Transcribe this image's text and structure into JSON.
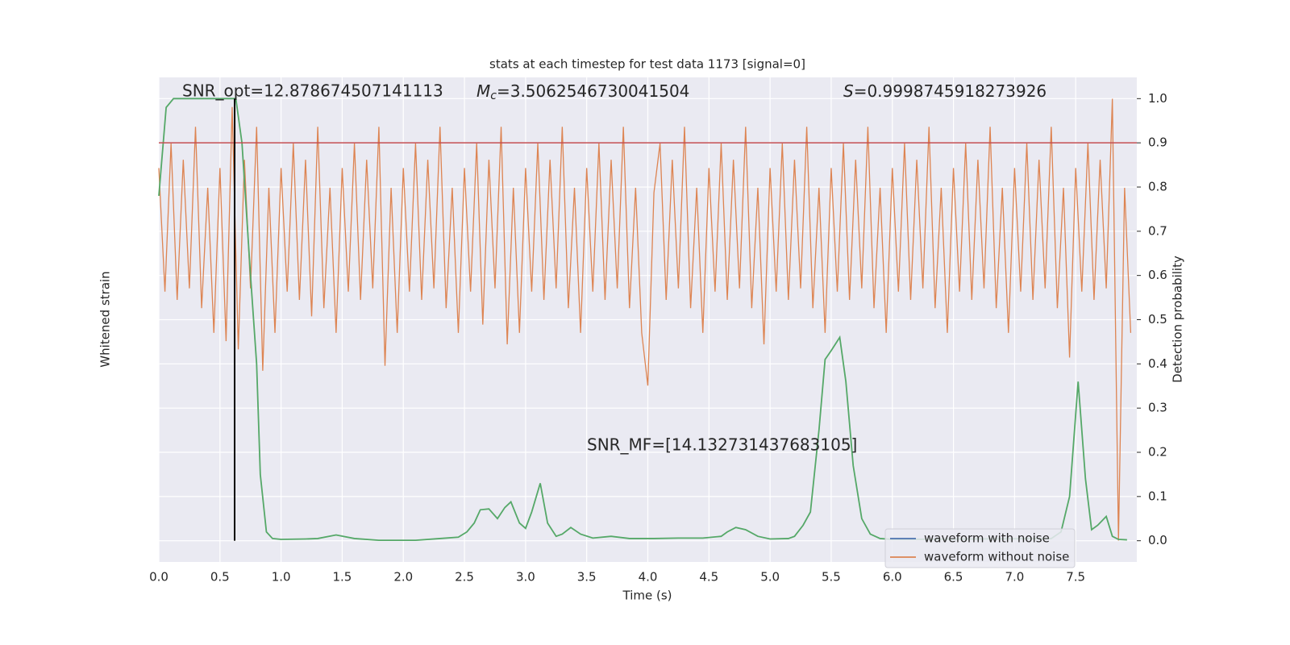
{
  "chart_data": {
    "type": "line",
    "title": "stats at each timestep for test data 1173 [signal=0]",
    "xlabel": "Time (s)",
    "ylabel": "Whitened strain",
    "y2label": "Detection probability",
    "xlim": [
      0,
      8
    ],
    "xticks": [
      {
        "value": 0,
        "label": "0.0"
      },
      0.5,
      {
        "value": 1,
        "label": "1.0"
      },
      1.5,
      {
        "value": 2,
        "label": "2.0"
      },
      2.5,
      {
        "value": 3,
        "label": "3.0"
      },
      3.5,
      {
        "value": 4,
        "label": "4.0"
      },
      4.5,
      {
        "value": 5,
        "label": "5.0"
      },
      5.5,
      {
        "value": 6,
        "label": "6.0"
      },
      6.5,
      {
        "value": 7,
        "label": "7.0"
      },
      7.5
    ],
    "ylim": [
      -1.94,
      1
    ],
    "y2lim": [
      -0.048,
      1.048
    ],
    "y2ticks": [
      {
        "value": 0,
        "label": "0.0"
      },
      0.1,
      0.2,
      0.3,
      0.4,
      0.5,
      0.6,
      0.7,
      0.8,
      0.9,
      {
        "value": 1,
        "label": "1.0"
      }
    ],
    "grid": true,
    "legend": "lower right",
    "legend_entries": [
      {
        "name": "waveform with noise",
        "color": "#4c72b0"
      },
      {
        "name": "waveform without noise",
        "color": "#dd8452"
      }
    ],
    "annotations": {
      "snr_opt": "SNR_opt=12.878674507141113",
      "chirp_mass": {
        "symbol": "M",
        "subscript": "c",
        "text": "=3.5062546730041504"
      },
      "score": {
        "symbol": "S",
        "text": "=0.9998745918273926"
      },
      "snr_mf": "SNR_MF=[14.132731437683105]"
    },
    "threshold": {
      "y": 0.9,
      "color": "#c44e52",
      "axis": "y2"
    },
    "marker_line": {
      "x": 0.62,
      "ymin": 0,
      "ymax": 1,
      "color": "#000000",
      "axis": "y2"
    },
    "series": [
      {
        "name": "waveform without noise",
        "color": "#dd8452",
        "axis": "y",
        "x": [
          0,
          0.05,
          0.1,
          0.15,
          0.2,
          0.25,
          0.3,
          0.35,
          0.4,
          0.45,
          0.5,
          0.55,
          0.6,
          0.65,
          0.7,
          0.75,
          0.8,
          0.85,
          0.9,
          0.95,
          1,
          1.05,
          1.1,
          1.15,
          1.2,
          1.25,
          1.3,
          1.35,
          1.4,
          1.45,
          1.5,
          1.55,
          1.6,
          1.65,
          1.7,
          1.75,
          1.8,
          1.85,
          1.9,
          1.95,
          2,
          2.05,
          2.1,
          2.15,
          2.2,
          2.25,
          2.3,
          2.35,
          2.4,
          2.45,
          2.5,
          2.55,
          2.6,
          2.65,
          2.7,
          2.75,
          2.8,
          2.85,
          2.9,
          2.95,
          3,
          3.05,
          3.1,
          3.15,
          3.2,
          3.25,
          3.3,
          3.35,
          3.4,
          3.45,
          3.5,
          3.55,
          3.6,
          3.65,
          3.7,
          3.75,
          3.8,
          3.85,
          3.9,
          3.95,
          4,
          4.05,
          4.1,
          4.15,
          4.2,
          4.25,
          4.3,
          4.35,
          4.4,
          4.45,
          4.5,
          4.55,
          4.6,
          4.65,
          4.7,
          4.75,
          4.8,
          4.85,
          4.9,
          4.95,
          5,
          5.05,
          5.1,
          5.15,
          5.2,
          5.25,
          5.3,
          5.35,
          5.4,
          5.45,
          5.5,
          5.55,
          5.6,
          5.65,
          5.7,
          5.75,
          5.8,
          5.85,
          5.9,
          5.95,
          6,
          6.05,
          6.1,
          6.15,
          6.2,
          6.25,
          6.3,
          6.35,
          6.4,
          6.45,
          6.5,
          6.55,
          6.6,
          6.65,
          6.7,
          6.75,
          6.8,
          6.85,
          6.9,
          6.95,
          7,
          7.05,
          7.1,
          7.15,
          7.2,
          7.25,
          7.3,
          7.35,
          7.4,
          7.45,
          7.5,
          7.55,
          7.6,
          7.65,
          7.7,
          7.75,
          7.8,
          7.85,
          7.9,
          7.95
        ],
        "values": [
          0.45,
          -0.3,
          0.6,
          -0.35,
          0.5,
          -0.28,
          0.7,
          -0.4,
          0.33,
          -0.55,
          0.45,
          -0.6,
          0.82,
          -0.65,
          0.5,
          -0.28,
          0.7,
          -0.78,
          0.33,
          -0.55,
          0.45,
          -0.3,
          0.6,
          -0.35,
          0.5,
          -0.45,
          0.7,
          -0.4,
          0.33,
          -0.55,
          0.45,
          -0.3,
          0.6,
          -0.35,
          0.5,
          -0.28,
          0.7,
          -0.75,
          0.33,
          -0.55,
          0.45,
          -0.3,
          0.6,
          -0.35,
          0.5,
          -0.28,
          0.7,
          -0.4,
          0.33,
          -0.55,
          0.45,
          -0.3,
          0.6,
          -0.5,
          0.5,
          -0.28,
          0.7,
          -0.62,
          0.33,
          -0.55,
          0.45,
          -0.3,
          0.6,
          -0.35,
          0.5,
          -0.28,
          0.7,
          -0.4,
          0.33,
          -0.55,
          0.45,
          -0.3,
          0.6,
          -0.35,
          0.5,
          -0.28,
          0.7,
          -0.4,
          0.33,
          -0.55,
          -0.87,
          0.3,
          0.6,
          -0.35,
          0.5,
          -0.28,
          0.7,
          -0.4,
          0.33,
          -0.55,
          0.45,
          -0.3,
          0.6,
          -0.35,
          0.5,
          -0.28,
          0.7,
          -0.4,
          0.33,
          -0.62,
          0.45,
          -0.3,
          0.6,
          -0.35,
          0.5,
          -0.28,
          0.7,
          -0.4,
          0.33,
          -0.55,
          0.45,
          -0.3,
          0.6,
          -0.35,
          0.5,
          -0.28,
          0.7,
          -0.4,
          0.33,
          -0.55,
          0.45,
          -0.3,
          0.6,
          -0.35,
          0.5,
          -0.28,
          0.7,
          -0.4,
          0.33,
          -0.55,
          0.45,
          -0.3,
          0.6,
          -0.35,
          0.5,
          -0.28,
          0.7,
          -0.4,
          0.33,
          -0.55,
          0.45,
          -0.3,
          0.6,
          -0.35,
          0.5,
          -0.28,
          0.7,
          -0.4,
          0.33,
          -0.7,
          0.45,
          -0.3,
          0.6,
          -0.35,
          0.5,
          -0.28,
          0.87,
          -1.81,
          0.33,
          -0.55
        ]
      },
      {
        "name": "Detection probability",
        "color": "#55a868",
        "axis": "y2",
        "x": [
          0,
          0.06,
          0.12,
          0.63,
          0.68,
          0.75,
          0.8,
          0.83,
          0.88,
          0.93,
          1,
          1.2,
          1.3,
          1.45,
          1.6,
          1.8,
          2.1,
          2.3,
          2.45,
          2.52,
          2.58,
          2.63,
          2.7,
          2.77,
          2.83,
          2.88,
          2.95,
          3,
          3.05,
          3.12,
          3.18,
          3.25,
          3.3,
          3.37,
          3.45,
          3.55,
          3.7,
          3.85,
          4.05,
          4.25,
          4.45,
          4.6,
          4.65,
          4.72,
          4.8,
          4.9,
          5,
          5.15,
          5.2,
          5.27,
          5.33,
          5.4,
          5.45,
          5.5,
          5.57,
          5.62,
          5.68,
          5.75,
          5.82,
          5.9,
          6,
          7.3,
          7.38,
          7.45,
          7.52,
          7.58,
          7.63,
          7.68,
          7.75,
          7.8,
          7.85,
          7.92
        ],
        "values": [
          0.78,
          0.98,
          1,
          1,
          0.9,
          0.6,
          0.4,
          0.15,
          0.02,
          0.005,
          0.003,
          0.004,
          0.005,
          0.013,
          0.005,
          0.001,
          0.001,
          0.005,
          0.008,
          0.02,
          0.04,
          0.07,
          0.072,
          0.05,
          0.075,
          0.088,
          0.04,
          0.028,
          0.065,
          0.13,
          0.04,
          0.01,
          0.015,
          0.03,
          0.015,
          0.006,
          0.01,
          0.005,
          0.005,
          0.006,
          0.006,
          0.01,
          0.02,
          0.03,
          0.025,
          0.01,
          0.004,
          0.005,
          0.01,
          0.035,
          0.065,
          0.25,
          0.41,
          0.43,
          0.46,
          0.36,
          0.17,
          0.05,
          0.015,
          0.005,
          0.003,
          0.005,
          0.02,
          0.1,
          0.36,
          0.14,
          0.025,
          0.035,
          0.055,
          0.01,
          0.003,
          0.002
        ]
      }
    ]
  }
}
